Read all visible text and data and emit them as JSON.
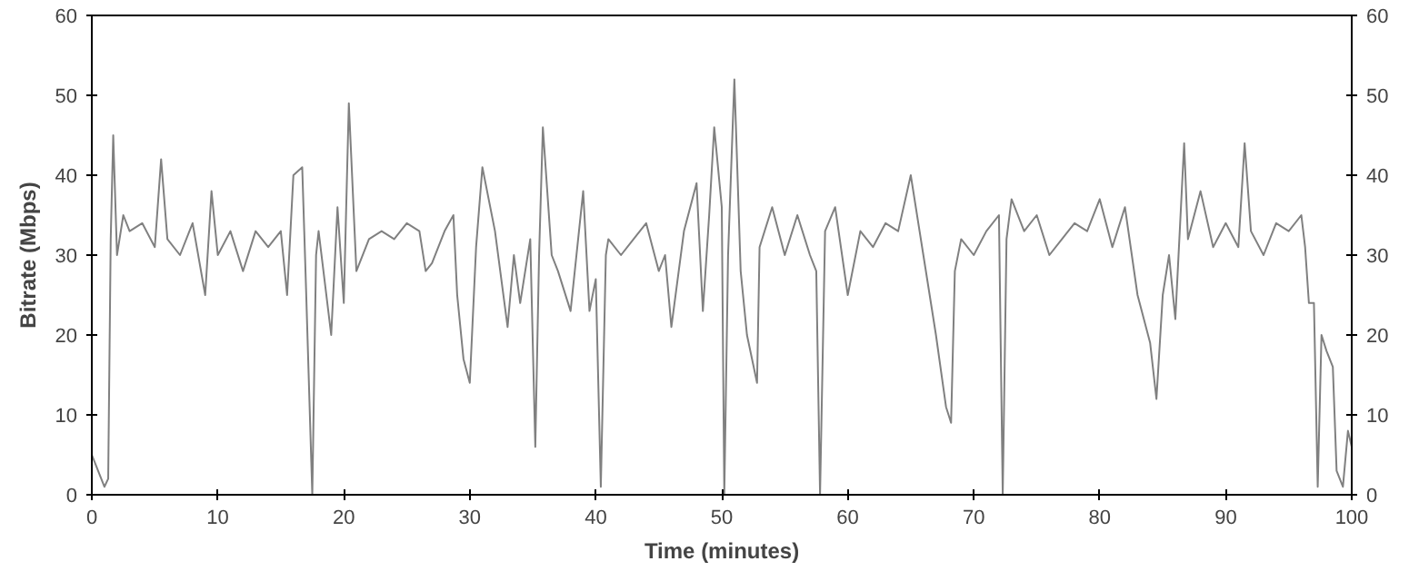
{
  "chart_data": {
    "type": "line",
    "xlabel": "Time (minutes)",
    "ylabel": "Bitrate (Mbps)",
    "x": [
      0,
      0.5,
      1,
      1.3,
      1.5,
      1.7,
      2,
      2.5,
      3,
      4,
      5,
      5.5,
      6,
      7,
      8,
      9,
      9.5,
      10,
      11,
      12,
      13,
      14,
      15,
      15.5,
      16,
      16.7,
      17,
      17.5,
      17.8,
      18,
      19,
      19.5,
      20,
      20.4,
      21,
      22,
      23,
      24,
      25,
      26,
      26.5,
      27,
      28,
      28.7,
      29,
      29.5,
      30,
      30.5,
      31,
      32,
      33,
      33.5,
      34,
      34.8,
      35.2,
      35.5,
      35.8,
      36.5,
      37,
      38,
      39,
      39.5,
      40,
      40.4,
      40.8,
      41,
      42,
      43,
      44,
      45,
      45.5,
      46,
      47,
      48,
      48.5,
      49,
      49.4,
      50,
      50.2,
      50.5,
      51,
      51.5,
      52,
      52.8,
      53,
      54,
      55,
      56,
      57,
      57.5,
      57.8,
      58.2,
      59,
      60,
      61,
      62,
      63,
      64,
      65,
      66,
      67,
      67.8,
      68.2,
      68.5,
      69,
      70,
      71,
      72,
      72.3,
      72.6,
      73,
      74,
      75,
      76,
      77,
      78,
      79,
      80,
      81,
      82,
      83,
      84,
      84.5,
      85,
      85.5,
      86,
      86.7,
      87,
      88,
      89,
      90,
      91,
      91.5,
      92,
      93,
      94,
      95,
      96,
      96.3,
      96.6,
      97,
      97.3,
      97.6,
      98,
      98.5,
      98.8,
      99.3,
      99.7,
      100
    ],
    "series": [
      {
        "color": "#808080",
        "values": [
          5,
          3,
          1,
          2,
          32,
          45,
          30,
          35,
          33,
          34,
          31,
          42,
          32,
          30,
          34,
          25,
          38,
          30,
          33,
          28,
          33,
          31,
          33,
          25,
          40,
          41,
          26,
          0,
          30,
          33,
          20,
          36,
          24,
          49,
          28,
          32,
          33,
          32,
          34,
          33,
          28,
          29,
          33,
          35,
          25,
          17,
          14,
          31,
          41,
          33,
          21,
          30,
          24,
          32,
          6,
          30,
          46,
          30,
          28,
          23,
          38,
          23,
          27,
          1,
          30,
          32,
          30,
          32,
          34,
          28,
          30,
          21,
          33,
          39,
          23,
          35,
          46,
          36,
          0,
          30,
          52,
          28,
          20,
          14,
          31,
          36,
          30,
          35,
          30,
          28,
          0,
          33,
          36,
          25,
          33,
          31,
          34,
          33,
          40,
          30,
          20,
          11,
          9,
          28,
          32,
          30,
          33,
          35,
          0,
          32,
          37,
          33,
          35,
          30,
          32,
          34,
          33,
          37,
          31,
          36,
          25,
          19,
          12,
          25,
          30,
          22,
          44,
          32,
          38,
          31,
          34,
          31,
          44,
          33,
          30,
          34,
          33,
          35,
          31,
          24,
          24,
          1,
          20,
          18,
          16,
          3,
          1,
          8,
          6
        ]
      }
    ],
    "xlim": [
      0,
      100
    ],
    "xticks": [
      0,
      10,
      20,
      30,
      40,
      50,
      60,
      70,
      80,
      90,
      100
    ],
    "ylim": [
      0,
      60
    ],
    "yticks": [
      0,
      10,
      20,
      30,
      40,
      50,
      60
    ],
    "y2lim": [
      0,
      60
    ],
    "y2ticks": [
      0,
      10,
      20,
      30,
      40,
      50,
      60
    ],
    "grid": false,
    "marker": "none",
    "line_style": "solid"
  }
}
